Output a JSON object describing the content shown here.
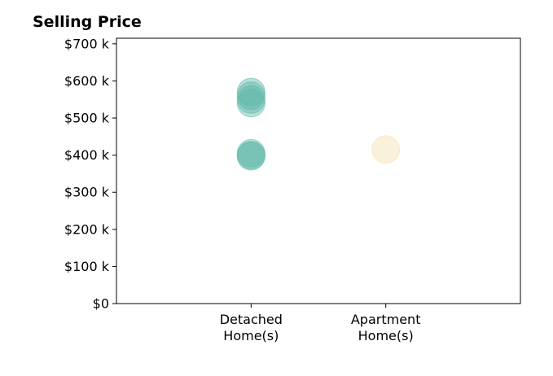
{
  "chart_data": {
    "type": "scatter",
    "title": "Selling Price",
    "xlabel": "",
    "ylabel": "",
    "categories": [
      "Detached\nHome(s)",
      "Apartment\nHome(s)"
    ],
    "category_labels": [
      [
        "Detached",
        "Home(s)"
      ],
      [
        "Apartment",
        "Home(s)"
      ]
    ],
    "yticks": [
      0,
      100000,
      200000,
      300000,
      400000,
      500000,
      600000,
      700000
    ],
    "ytick_labels": [
      "$0",
      "$100 k",
      "$200 k",
      "$300 k",
      "$400 k",
      "$500 k",
      "$600 k",
      "$700 k"
    ],
    "ylim": [
      0,
      715000
    ],
    "xlim": [
      -1,
      2
    ],
    "grid": false,
    "series": [
      {
        "color": "#5fb8a8",
        "points": [
          {
            "category": "Detached\nHome(s)",
            "value": 570000
          },
          {
            "category": "Detached\nHome(s)",
            "value": 560000
          },
          {
            "category": "Detached\nHome(s)",
            "value": 550000
          },
          {
            "category": "Detached\nHome(s)",
            "value": 540000
          },
          {
            "category": "Detached\nHome(s)",
            "value": 405000
          },
          {
            "category": "Detached\nHome(s)",
            "value": 400000
          },
          {
            "category": "Detached\nHome(s)",
            "value": 397000
          }
        ]
      },
      {
        "color": "#f3dfb0",
        "points": [
          {
            "category": "Apartment\nHome(s)",
            "value": 415000
          }
        ]
      }
    ]
  }
}
